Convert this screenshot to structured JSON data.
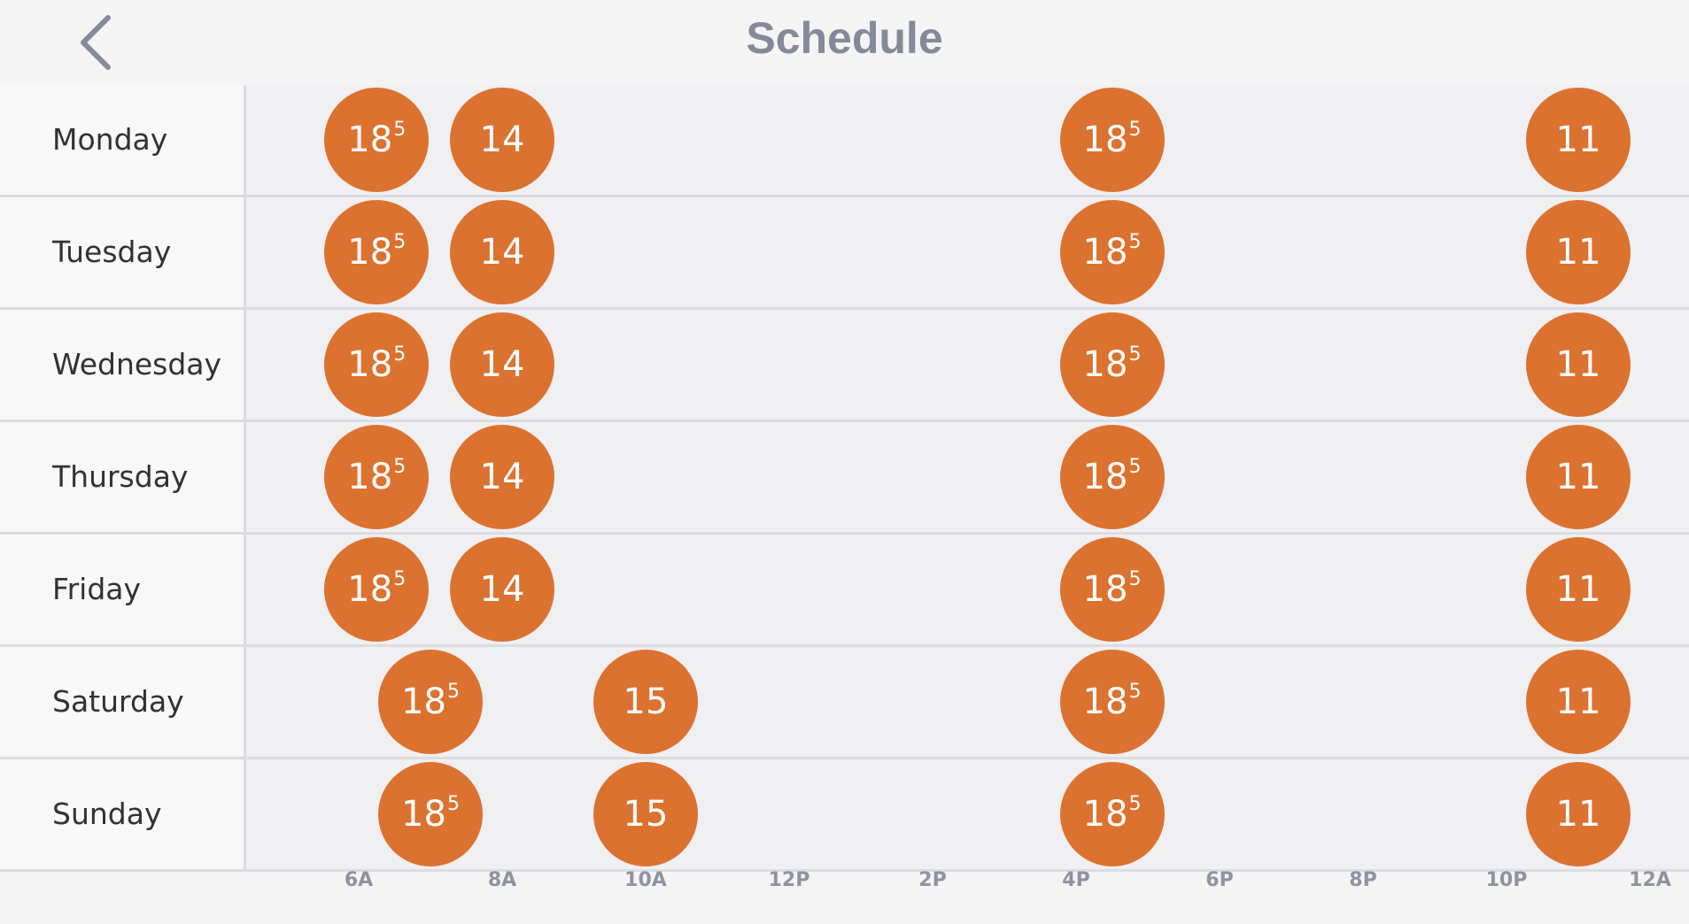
{
  "header": {
    "title": "Schedule",
    "back_icon": "chevron-left-icon"
  },
  "colors": {
    "setpoint": "#dc7230",
    "title": "#858a99"
  },
  "days": [
    {
      "name": "Monday",
      "points": [
        {
          "hour": 6.25,
          "whole": "18",
          "frac": "5"
        },
        {
          "hour": 8.0,
          "whole": "14",
          "frac": ""
        },
        {
          "hour": 16.5,
          "whole": "18",
          "frac": "5"
        },
        {
          "hour": 23.0,
          "whole": "11",
          "frac": ""
        }
      ]
    },
    {
      "name": "Tuesday",
      "points": [
        {
          "hour": 6.25,
          "whole": "18",
          "frac": "5"
        },
        {
          "hour": 8.0,
          "whole": "14",
          "frac": ""
        },
        {
          "hour": 16.5,
          "whole": "18",
          "frac": "5"
        },
        {
          "hour": 23.0,
          "whole": "11",
          "frac": ""
        }
      ]
    },
    {
      "name": "Wednesday",
      "points": [
        {
          "hour": 6.25,
          "whole": "18",
          "frac": "5"
        },
        {
          "hour": 8.0,
          "whole": "14",
          "frac": ""
        },
        {
          "hour": 16.5,
          "whole": "18",
          "frac": "5"
        },
        {
          "hour": 23.0,
          "whole": "11",
          "frac": ""
        }
      ]
    },
    {
      "name": "Thursday",
      "points": [
        {
          "hour": 6.25,
          "whole": "18",
          "frac": "5"
        },
        {
          "hour": 8.0,
          "whole": "14",
          "frac": ""
        },
        {
          "hour": 16.5,
          "whole": "18",
          "frac": "5"
        },
        {
          "hour": 23.0,
          "whole": "11",
          "frac": ""
        }
      ]
    },
    {
      "name": "Friday",
      "points": [
        {
          "hour": 6.25,
          "whole": "18",
          "frac": "5"
        },
        {
          "hour": 8.0,
          "whole": "14",
          "frac": ""
        },
        {
          "hour": 16.5,
          "whole": "18",
          "frac": "5"
        },
        {
          "hour": 23.0,
          "whole": "11",
          "frac": ""
        }
      ]
    },
    {
      "name": "Saturday",
      "points": [
        {
          "hour": 7.0,
          "whole": "18",
          "frac": "5"
        },
        {
          "hour": 10.0,
          "whole": "15",
          "frac": ""
        },
        {
          "hour": 16.5,
          "whole": "18",
          "frac": "5"
        },
        {
          "hour": 23.0,
          "whole": "11",
          "frac": ""
        }
      ]
    },
    {
      "name": "Sunday",
      "points": [
        {
          "hour": 7.0,
          "whole": "18",
          "frac": "5"
        },
        {
          "hour": 10.0,
          "whole": "15",
          "frac": ""
        },
        {
          "hour": 16.5,
          "whole": "18",
          "frac": "5"
        },
        {
          "hour": 23.0,
          "whole": "11",
          "frac": ""
        }
      ]
    }
  ],
  "axis": {
    "ticks": [
      {
        "label": "6A",
        "hour": 6
      },
      {
        "label": "8A",
        "hour": 8
      },
      {
        "label": "10A",
        "hour": 10
      },
      {
        "label": "12P",
        "hour": 12
      },
      {
        "label": "2P",
        "hour": 14
      },
      {
        "label": "4P",
        "hour": 16
      },
      {
        "label": "6P",
        "hour": 18
      },
      {
        "label": "8P",
        "hour": 20
      },
      {
        "label": "10P",
        "hour": 22
      },
      {
        "label": "12A",
        "hour": 24
      }
    ]
  }
}
